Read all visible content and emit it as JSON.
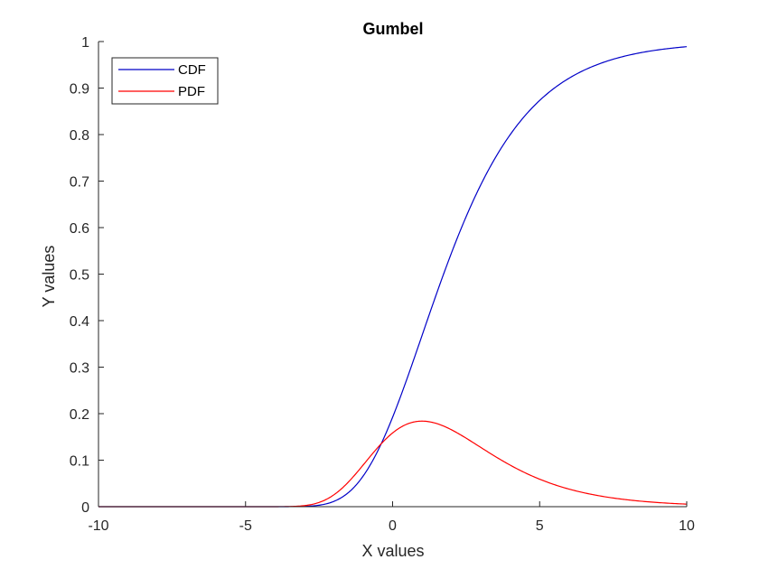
{
  "chart_data": {
    "type": "line",
    "title": "Gumbel",
    "xlabel": "X values",
    "ylabel": "Y values",
    "xlim": [
      -10,
      10
    ],
    "ylim": [
      0,
      1
    ],
    "xticks": [
      -10,
      -5,
      0,
      5,
      10
    ],
    "yticks": [
      0,
      0.1,
      0.2,
      0.3,
      0.4,
      0.5,
      0.6,
      0.7,
      0.8,
      0.9,
      1
    ],
    "xtick_labels": [
      "-10",
      "-5",
      "0",
      "5",
      "10"
    ],
    "ytick_labels": [
      "0",
      "0.1",
      "0.2",
      "0.3",
      "0.4",
      "0.5",
      "0.6",
      "0.7",
      "0.8",
      "0.9",
      "1"
    ],
    "grid": false,
    "legend": "top-left",
    "distribution": {
      "mu": 1,
      "beta": 2
    },
    "series": [
      {
        "name": "CDF",
        "color": "#0000c8",
        "x": [
          -10,
          -5,
          -3.5,
          -3,
          -2.5,
          -2,
          -1.5,
          -1,
          -0.5,
          0,
          0.5,
          1,
          1.5,
          2,
          2.5,
          3,
          3.5,
          4,
          4.5,
          5,
          5.5,
          6,
          6.5,
          7,
          7.5,
          8,
          8.5,
          9,
          9.5,
          10
        ],
        "y": [
          0,
          0,
          0.0001,
          0.0007,
          0.0033,
          0.0113,
          0.0295,
          0.066,
          0.1226,
          0.1923,
          0.2689,
          0.3679,
          0.4586,
          0.5452,
          0.625,
          0.6922,
          0.7485,
          0.7992,
          0.8402,
          0.8734,
          0.8998,
          0.9207,
          0.9371,
          0.9502,
          0.9608,
          0.9693,
          0.976,
          0.9812,
          0.9852,
          0.989
        ]
      },
      {
        "name": "PDF",
        "color": "#ff0000",
        "x": [
          -10,
          -5,
          -3.5,
          -3,
          -2.5,
          -2,
          -1.5,
          -1,
          -0.5,
          0,
          0.5,
          1,
          1.5,
          2,
          2.5,
          3,
          3.5,
          4,
          4.5,
          5,
          5.5,
          6,
          6.5,
          7,
          7.5,
          8,
          8.5,
          9,
          9.5,
          10
        ],
        "y": [
          0,
          0,
          0.0005,
          0.0024,
          0.0085,
          0.0233,
          0.051,
          0.0909,
          0.1319,
          0.161,
          0.177,
          0.1839,
          0.1815,
          0.17,
          0.153,
          0.138,
          0.122,
          0.105,
          0.0905,
          0.078,
          0.066,
          0.055,
          0.046,
          0.038,
          0.031,
          0.0255,
          0.0205,
          0.016,
          0.0125,
          0.0095
        ]
      }
    ]
  }
}
